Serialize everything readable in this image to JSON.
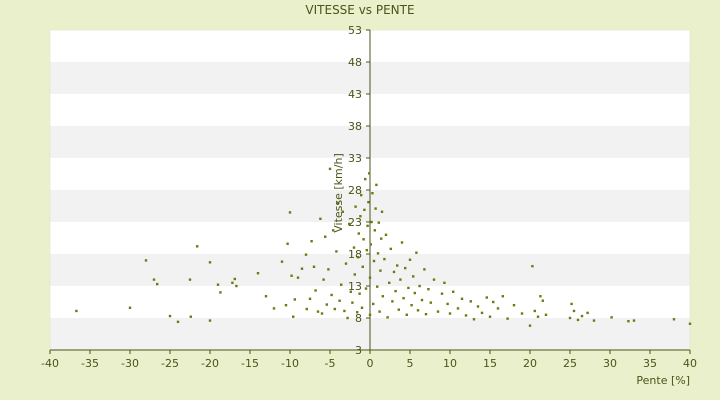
{
  "chart_data": {
    "type": "scatter",
    "title": "VITESSE vs PENTE",
    "xlabel": "Pente [%]",
    "ylabel": "Vitesse [km/h]",
    "xlim": [
      -40,
      40
    ],
    "ylim": [
      3,
      53
    ],
    "x_ticks": [
      -40,
      -35,
      -30,
      -25,
      -20,
      -15,
      -10,
      -5,
      0,
      5,
      10,
      15,
      20,
      25,
      30,
      35,
      40
    ],
    "y_ticks": [
      3,
      8,
      13,
      18,
      23,
      28,
      33,
      38,
      43,
      48,
      53
    ],
    "y_tick_labels": [
      "3",
      "8",
      "13",
      "18",
      "23",
      "28",
      "33",
      "38",
      "43",
      "48",
      "53"
    ],
    "grid": true,
    "legend": "none",
    "colors": {
      "background": "#ebf0cc",
      "band_light": "#ffffff",
      "band_dark": "#f2f2f2",
      "axis": "#4a5418",
      "marker": "#6b7a12"
    },
    "points": [
      [
        -36.7,
        9.1
      ],
      [
        -30.0,
        9.6
      ],
      [
        -28.0,
        17.0
      ],
      [
        -27.0,
        14.0
      ],
      [
        -26.6,
        13.3
      ],
      [
        -25.0,
        8.3
      ],
      [
        -24.0,
        7.4
      ],
      [
        -22.4,
        8.2
      ],
      [
        -22.5,
        14.0
      ],
      [
        -21.6,
        19.2
      ],
      [
        -20.0,
        7.6
      ],
      [
        -20.0,
        16.7
      ],
      [
        -19.0,
        13.2
      ],
      [
        -18.7,
        12.0
      ],
      [
        -17.2,
        13.5
      ],
      [
        -16.9,
        14.1
      ],
      [
        -16.7,
        13.0
      ],
      [
        -14.0,
        15.0
      ],
      [
        -13.0,
        11.4
      ],
      [
        -12.0,
        9.5
      ],
      [
        -11.0,
        16.8
      ],
      [
        -10.5,
        10.0
      ],
      [
        -10.3,
        19.6
      ],
      [
        -10.0,
        24.5
      ],
      [
        -9.8,
        14.6
      ],
      [
        -9.6,
        8.2
      ],
      [
        -9.4,
        10.9
      ],
      [
        -9.0,
        14.3
      ],
      [
        -8.5,
        15.7
      ],
      [
        -8.0,
        17.9
      ],
      [
        -7.9,
        9.4
      ],
      [
        -7.5,
        11.0
      ],
      [
        -7.3,
        20.0
      ],
      [
        -7.0,
        16.0
      ],
      [
        -6.8,
        12.3
      ],
      [
        -6.5,
        9.0
      ],
      [
        -6.2,
        23.5
      ],
      [
        -6.0,
        8.7
      ],
      [
        -5.8,
        14.0
      ],
      [
        -5.6,
        20.7
      ],
      [
        -5.4,
        10.1
      ],
      [
        -5.2,
        15.6
      ],
      [
        -5.0,
        31.3
      ],
      [
        -4.8,
        11.6
      ],
      [
        -4.6,
        21.7
      ],
      [
        -4.4,
        9.4
      ],
      [
        -4.2,
        18.4
      ],
      [
        -4.0,
        26.0
      ],
      [
        -3.8,
        10.7
      ],
      [
        -3.6,
        13.2
      ],
      [
        -3.4,
        24.6
      ],
      [
        -3.2,
        9.1
      ],
      [
        -3.0,
        16.5
      ],
      [
        -2.8,
        8.0
      ],
      [
        -2.6,
        22.7
      ],
      [
        -2.4,
        12.1
      ],
      [
        -2.2,
        10.4
      ],
      [
        -2.0,
        19.0
      ],
      [
        -1.9,
        14.8
      ],
      [
        -1.8,
        25.4
      ],
      [
        -1.6,
        8.9
      ],
      [
        -1.5,
        17.5
      ],
      [
        -1.4,
        21.2
      ],
      [
        -1.3,
        11.8
      ],
      [
        -1.2,
        23.9
      ],
      [
        -1.1,
        27.2
      ],
      [
        -1.0,
        9.6
      ],
      [
        -0.9,
        16.0
      ],
      [
        -0.8,
        20.3
      ],
      [
        -0.7,
        24.9
      ],
      [
        -0.6,
        29.7
      ],
      [
        -0.5,
        12.6
      ],
      [
        -0.4,
        18.6
      ],
      [
        -0.3,
        22.4
      ],
      [
        -0.2,
        26.1
      ],
      [
        -0.1,
        30.6
      ],
      [
        0.0,
        8.5
      ],
      [
        0.0,
        14.3
      ],
      [
        0.1,
        19.5
      ],
      [
        0.2,
        23.0
      ],
      [
        0.3,
        27.5
      ],
      [
        0.4,
        10.2
      ],
      [
        0.5,
        16.9
      ],
      [
        0.6,
        21.7
      ],
      [
        0.7,
        25.1
      ],
      [
        0.8,
        28.8
      ],
      [
        0.9,
        12.9
      ],
      [
        1.0,
        18.1
      ],
      [
        1.1,
        22.9
      ],
      [
        1.2,
        9.0
      ],
      [
        1.3,
        15.4
      ],
      [
        1.4,
        20.4
      ],
      [
        1.5,
        24.6
      ],
      [
        1.6,
        11.4
      ],
      [
        1.8,
        17.2
      ],
      [
        2.0,
        21.0
      ],
      [
        2.2,
        8.1
      ],
      [
        2.4,
        13.5
      ],
      [
        2.6,
        18.8
      ],
      [
        2.8,
        10.6
      ],
      [
        3.0,
        15.2
      ],
      [
        3.2,
        12.2
      ],
      [
        3.4,
        16.2
      ],
      [
        3.6,
        9.3
      ],
      [
        3.8,
        14.0
      ],
      [
        4.0,
        19.8
      ],
      [
        4.2,
        11.1
      ],
      [
        4.4,
        15.8
      ],
      [
        4.6,
        8.5
      ],
      [
        4.8,
        12.7
      ],
      [
        5.0,
        17.1
      ],
      [
        5.2,
        10.0
      ],
      [
        5.4,
        14.5
      ],
      [
        5.6,
        11.9
      ],
      [
        5.8,
        18.2
      ],
      [
        6.0,
        9.2
      ],
      [
        6.2,
        13.0
      ],
      [
        6.5,
        10.8
      ],
      [
        6.8,
        15.6
      ],
      [
        7.0,
        8.6
      ],
      [
        7.3,
        12.5
      ],
      [
        7.6,
        10.4
      ],
      [
        8.0,
        14.0
      ],
      [
        8.5,
        9.0
      ],
      [
        9.0,
        11.8
      ],
      [
        9.3,
        13.5
      ],
      [
        9.7,
        10.2
      ],
      [
        10.0,
        8.7
      ],
      [
        10.4,
        12.1
      ],
      [
        11.0,
        9.5
      ],
      [
        11.5,
        11.0
      ],
      [
        12.0,
        8.4
      ],
      [
        12.6,
        10.6
      ],
      [
        13.0,
        7.8
      ],
      [
        13.5,
        9.8
      ],
      [
        14.0,
        8.8
      ],
      [
        14.6,
        11.2
      ],
      [
        15.0,
        8.2
      ],
      [
        15.4,
        10.5
      ],
      [
        16.0,
        9.5
      ],
      [
        16.6,
        11.4
      ],
      [
        17.2,
        7.9
      ],
      [
        18.0,
        10.0
      ],
      [
        19.0,
        8.7
      ],
      [
        20.0,
        6.8
      ],
      [
        20.3,
        16.1
      ],
      [
        20.6,
        9.1
      ],
      [
        21.0,
        8.2
      ],
      [
        21.3,
        11.4
      ],
      [
        21.6,
        10.7
      ],
      [
        22.0,
        8.5
      ],
      [
        25.0,
        8.0
      ],
      [
        25.2,
        10.2
      ],
      [
        25.5,
        9.1
      ],
      [
        26.0,
        7.7
      ],
      [
        26.5,
        8.3
      ],
      [
        27.2,
        8.8
      ],
      [
        28.0,
        7.6
      ],
      [
        30.2,
        8.1
      ],
      [
        32.3,
        7.5
      ],
      [
        33.0,
        7.6
      ],
      [
        38.0,
        7.8
      ],
      [
        40.0,
        7.1
      ]
    ]
  }
}
